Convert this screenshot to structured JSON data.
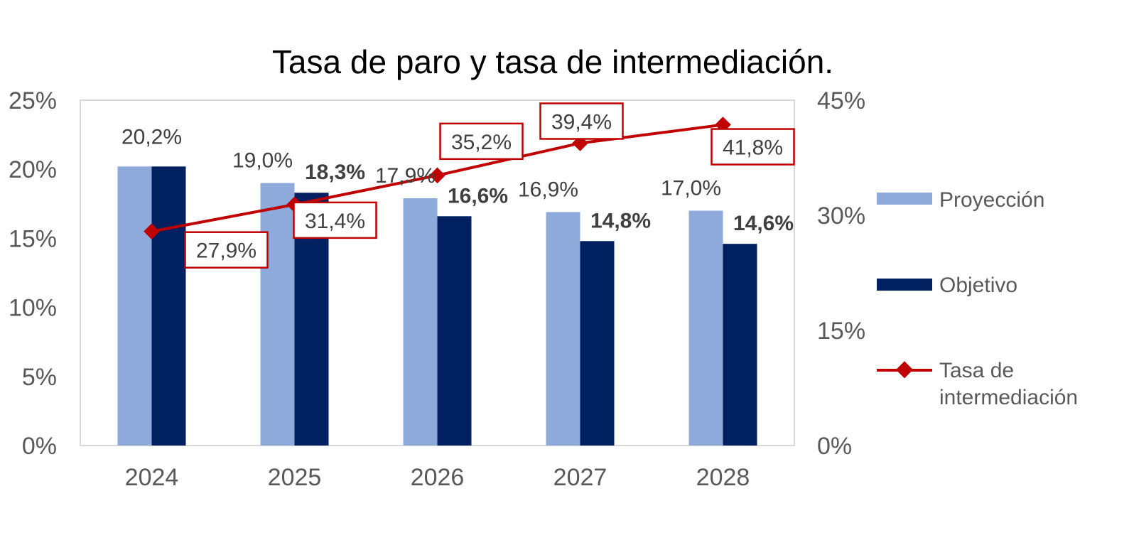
{
  "chart_data": {
    "type": "bar",
    "title": "Tasa de paro y tasa de intermediación.",
    "categories": [
      "2024",
      "2025",
      "2026",
      "2027",
      "2028"
    ],
    "y_left": {
      "min": 0,
      "max": 25,
      "ticks": [
        "0%",
        "5%",
        "10%",
        "15%",
        "20%",
        "25%"
      ]
    },
    "y_right": {
      "min": 0,
      "max": 45,
      "ticks": [
        "0%",
        "15%",
        "30%",
        "45%"
      ]
    },
    "series": [
      {
        "name": "Proyección",
        "kind": "bar",
        "axis": "left",
        "color": "#8eaadb",
        "values": [
          20.2,
          19.0,
          17.9,
          16.9,
          17.0
        ],
        "labels": [
          "20,2%",
          "19,0%",
          "17,9%",
          "16,9%",
          "17,0%"
        ]
      },
      {
        "name": "Objetivo",
        "kind": "bar",
        "axis": "left",
        "color": "#002060",
        "values": [
          20.2,
          18.3,
          16.6,
          14.8,
          14.6
        ],
        "labels": [
          "",
          "18,3%",
          "16,6%",
          "14,8%",
          "14,6%"
        ]
      },
      {
        "name": "Tasa de intermediación",
        "kind": "line",
        "axis": "right",
        "color": "#c00000",
        "values": [
          27.9,
          31.4,
          35.2,
          39.4,
          41.8
        ],
        "labels": [
          "27,9%",
          "31,4%",
          "35,2%",
          "39,4%",
          "41,8%"
        ]
      }
    ],
    "legend": {
      "position": "right",
      "items": [
        "Proyección",
        "Objetivo",
        "Tasa de",
        "intermediación"
      ]
    },
    "grid": false
  }
}
